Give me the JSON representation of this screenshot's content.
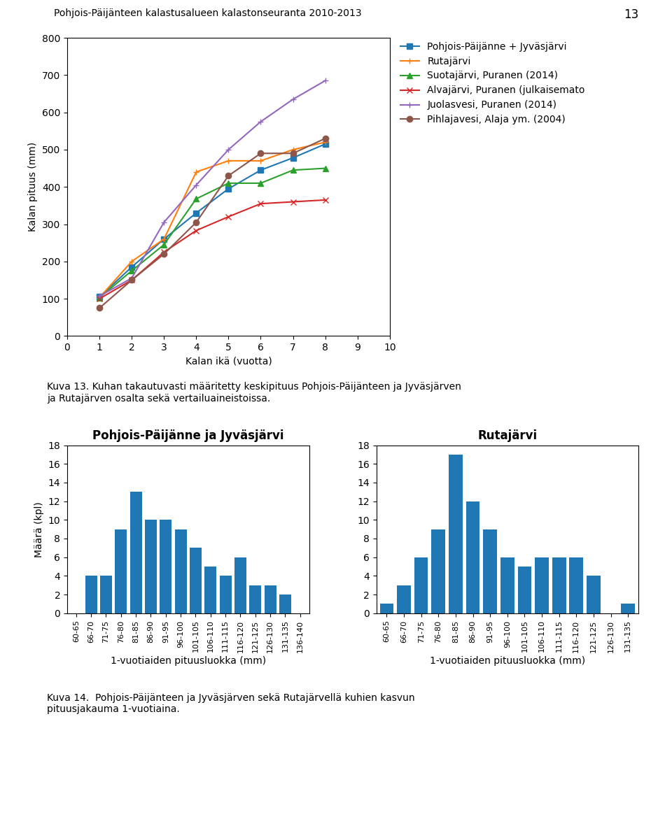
{
  "annotations": [
    "Pohjois-Päijänteen kalastusalueen kalastonseuranta 2010-2013",
    "13",
    "Kuva 13. Kuhan takautuvasti määritetty keskipituus Pohjois-Päijänteen ja Jyväsjärven\nja Rutajärven osalta sekä vertailuaineistoissa.",
    "Kuva 14.  Pohjois-Päijänteen ja Jyväsjärven sekä Rutajärvellä kuhien kasvun\npituusjakauma 1-vuotiaina."
  ],
  "chart_data": [
    {
      "type": "line",
      "xlabel": "Kalan ikä (vuotta)",
      "ylabel": "Kalan pituus (mm)",
      "xlim": [
        0,
        10
      ],
      "ylim": [
        0,
        800
      ],
      "xticks": [
        0,
        1,
        2,
        3,
        4,
        5,
        6,
        7,
        8,
        9,
        10
      ],
      "yticks": [
        0,
        100,
        200,
        300,
        400,
        500,
        600,
        700,
        800
      ],
      "x": [
        1,
        2,
        3,
        4,
        5,
        6,
        7,
        8
      ],
      "legend": "right",
      "series": [
        {
          "name": "Pohjois-Päijänne + Jyväsjärvi",
          "marker": "square",
          "values": [
            105,
            185,
            260,
            330,
            395,
            445,
            478,
            515
          ]
        },
        {
          "name": "Rutajärvi",
          "marker": "plus",
          "values": [
            103,
            200,
            260,
            440,
            470,
            470,
            500,
            520
          ]
        },
        {
          "name": "Suotajärvi, Puranen (2014)",
          "marker": "triangle",
          "values": [
            103,
            175,
            245,
            368,
            410,
            410,
            445,
            450
          ]
        },
        {
          "name": "Alvajärvi, Puranen (julkaisemato",
          "marker": "x",
          "values": [
            100,
            150,
            225,
            283,
            320,
            355,
            360,
            365
          ]
        },
        {
          "name": "Juolasvesi, Puranen (2014)",
          "marker": "plus",
          "values": [
            107,
            155,
            305,
            405,
            500,
            575,
            635,
            685
          ]
        },
        {
          "name": "Pihlajavesi, Alaja ym. (2004)",
          "marker": "circle",
          "values": [
            75,
            150,
            220,
            305,
            430,
            490,
            490,
            530
          ]
        }
      ]
    },
    {
      "type": "bar",
      "title": "Pohjois-Päijänne ja Jyväsjärvi",
      "xlabel": "1-vuotiaiden pituusluokka (mm)",
      "ylabel": "Määrä (kpl)",
      "ylim": [
        0,
        18
      ],
      "yticks": [
        0,
        2,
        4,
        6,
        8,
        10,
        12,
        14,
        16,
        18
      ],
      "categories": [
        "60-65",
        "66-70",
        "71-75",
        "76-80",
        "81-85",
        "86-90",
        "91-95",
        "96-100",
        "101-105",
        "106-110",
        "111-115",
        "116-120",
        "121-125",
        "126-130",
        "131-135",
        "136-140"
      ],
      "values": [
        0,
        4,
        4,
        9,
        13,
        10,
        10,
        9,
        7,
        5,
        4,
        6,
        3,
        3,
        2,
        0
      ]
    },
    {
      "type": "bar",
      "title": "Rutajärvi",
      "xlabel": "1-vuotiaiden pituusluokka (mm)",
      "ylim": [
        0,
        18
      ],
      "yticks": [
        0,
        2,
        4,
        6,
        8,
        10,
        12,
        14,
        16,
        18
      ],
      "categories": [
        "60-65",
        "66-70",
        "71-75",
        "76-80",
        "81-85",
        "86-90",
        "91-95",
        "96-100",
        "101-105",
        "106-110",
        "111-115",
        "116-120",
        "121-125",
        "126-130",
        "131-135"
      ],
      "values": [
        1,
        3,
        6,
        9,
        17,
        12,
        9,
        6,
        5,
        6,
        6,
        6,
        4,
        0,
        1
      ]
    }
  ]
}
